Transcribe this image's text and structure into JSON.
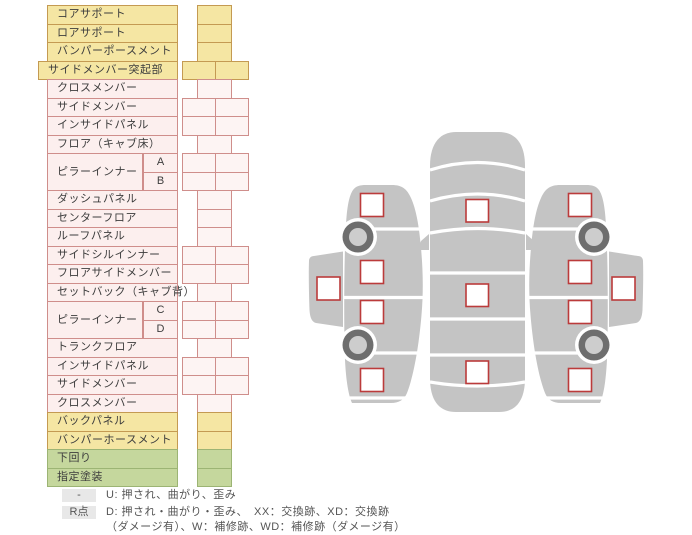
{
  "colors": {
    "yellow_fill": "#f5e6a3",
    "yellow_border": "#c49a52",
    "pink_fill": "#fcefee",
    "pink_cell_fill": "#fdf4f3",
    "pink_border": "#cf8e8b",
    "green_fill": "#c5d79d",
    "green_border": "#9cb474",
    "car_body": "#c4c4c4",
    "wheel_ring": "#6e6e6e",
    "wheel_hub": "#cdcdcd",
    "marker_border": "#bb3b3b",
    "badge_bg": "#e8e8e8",
    "text": "#3d3d3d"
  },
  "table": {
    "rows": [
      {
        "label": "コアサポート",
        "type": "yellow",
        "cells": 1
      },
      {
        "label": "ロアサポート",
        "type": "yellow",
        "cells": 1
      },
      {
        "label": "バンパーポースメント",
        "type": "yellow",
        "cells": 1
      },
      {
        "label": "サイドメンバー突起部",
        "type": "yellow",
        "cells": 2,
        "wide_label": true
      },
      {
        "label": "クロスメンバー",
        "type": "pink",
        "cells": 1
      },
      {
        "label": "サイドメンバー",
        "type": "pink",
        "cells": 2
      },
      {
        "label": "インサイドパネル",
        "type": "pink",
        "cells": 2
      },
      {
        "label": "フロア（キャブ床）",
        "type": "pink",
        "cells": 1
      },
      {
        "label": "ピラーインナー",
        "type": "pink",
        "cells": 2,
        "subs": [
          "A",
          "B"
        ]
      },
      {
        "label": "ダッシュパネル",
        "type": "pink",
        "cells": 1
      },
      {
        "label": "センターフロア",
        "type": "pink",
        "cells": 1
      },
      {
        "label": "ルーフパネル",
        "type": "pink",
        "cells": 1
      },
      {
        "label": "サイドシルインナー",
        "type": "pink",
        "cells": 2
      },
      {
        "label": "フロアサイドメンバー",
        "type": "pink",
        "cells": 2
      },
      {
        "label": "セットバック（キャブ背）",
        "type": "pink",
        "cells": 1
      },
      {
        "label": "ピラーインナー",
        "type": "pink",
        "cells": 2,
        "subs": [
          "C",
          "D"
        ]
      },
      {
        "label": "トランクフロア",
        "type": "pink",
        "cells": 1
      },
      {
        "label": "インサイドパネル",
        "type": "pink",
        "cells": 2
      },
      {
        "label": "サイドメンバー",
        "type": "pink",
        "cells": 2
      },
      {
        "label": "クロスメンバー",
        "type": "pink",
        "cells": 1
      },
      {
        "label": "バックパネル",
        "type": "yellow",
        "cells": 1
      },
      {
        "label": "バンパーホースメント",
        "type": "yellow",
        "cells": 1
      },
      {
        "label": "下回り",
        "type": "green",
        "cells": 1
      },
      {
        "label": "指定塗装",
        "type": "green",
        "cells": 1
      }
    ]
  },
  "legend": {
    "items": [
      {
        "badge": "-",
        "lines": [
          "U: 押され、曲がり、歪み"
        ]
      },
      {
        "badge": "R点",
        "lines": [
          "D: 押され・曲がり・歪み、　XX：交換跡、XD：交換跡",
          "（ダメージ有）、W：補修跡、WD：補修跡（ダメージ有）"
        ]
      }
    ]
  },
  "diagram": {
    "views": [
      "side-view-left",
      "top-view",
      "side-view-right"
    ],
    "top_view_marker_count": 3,
    "side_view_marker_count": 5,
    "side_view_wheel_count": 2
  }
}
